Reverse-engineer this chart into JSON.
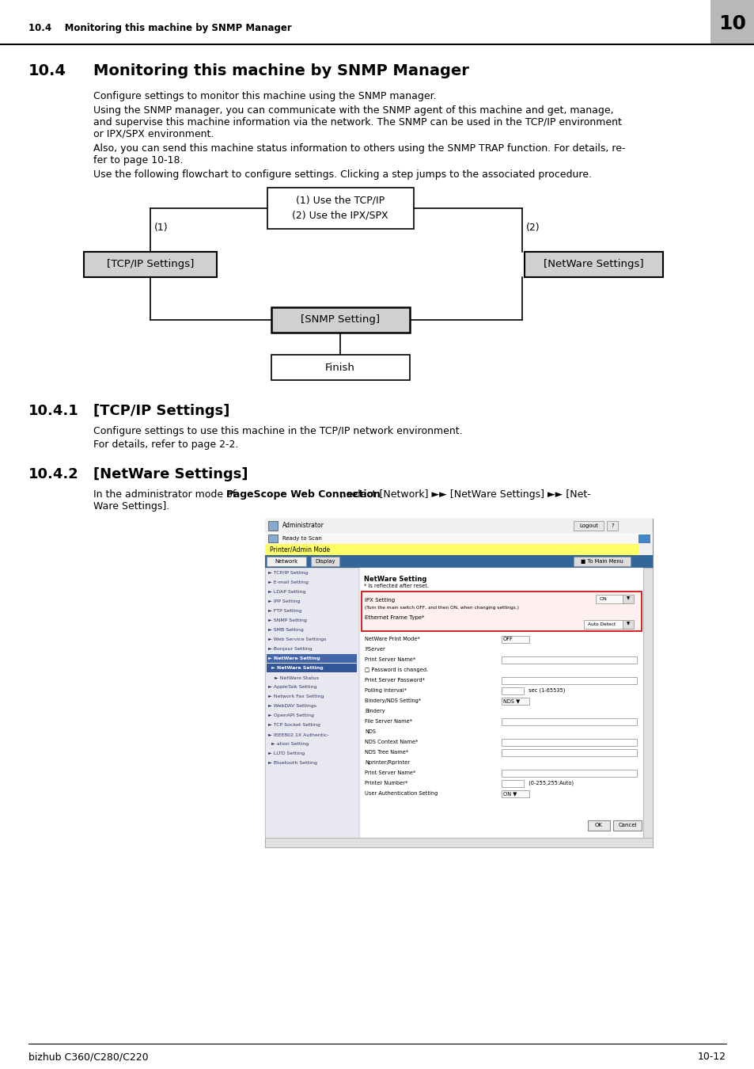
{
  "page_header_text": "10.4    Monitoring this machine by SNMP Manager",
  "page_number_box": "10",
  "section_title_num": "10.4",
  "section_title_text": "Monitoring this machine by SNMP Manager",
  "para1": "Configure settings to monitor this machine using the SNMP manager.",
  "para2a": "Using the SNMP manager, you can communicate with the SNMP agent of this machine and get, manage,",
  "para2b": "and supervise this machine information via the network. The SNMP can be used in the TCP/IP environment",
  "para2c": "or IPX/SPX environment.",
  "para3a": "Also, you can send this machine status information to others using the SNMP TRAP function. For details, re-",
  "para3b": "fer to page 10-18.",
  "para4": "Use the following flowchart to configure settings. Clicking a step jumps to the associated procedure.",
  "box_tcp": "[TCP/IP Settings]",
  "box_netware": "[NetWare Settings]",
  "box_snmp": "[SNMP Setting]",
  "box_finish": "Finish",
  "sub1_num": "10.4.1",
  "sub1_title": "[TCP/IP Settings]",
  "sub1_para1": "Configure settings to use this machine in the TCP/IP network environment.",
  "sub1_para2": "For details, refer to page 2-2.",
  "sub2_num": "10.4.2",
  "sub2_title": "[NetWare Settings]",
  "sub2_para1": "In the administrator mode of ⁠PageScope Web Connection⁠, select [Network] ►► [NetWare Settings] ►► [Net-",
  "sub2_para2": "Ware Settings].",
  "footer_left": "bizhub C360/C280/C220",
  "footer_right": "10-12",
  "bg_color": "#ffffff"
}
